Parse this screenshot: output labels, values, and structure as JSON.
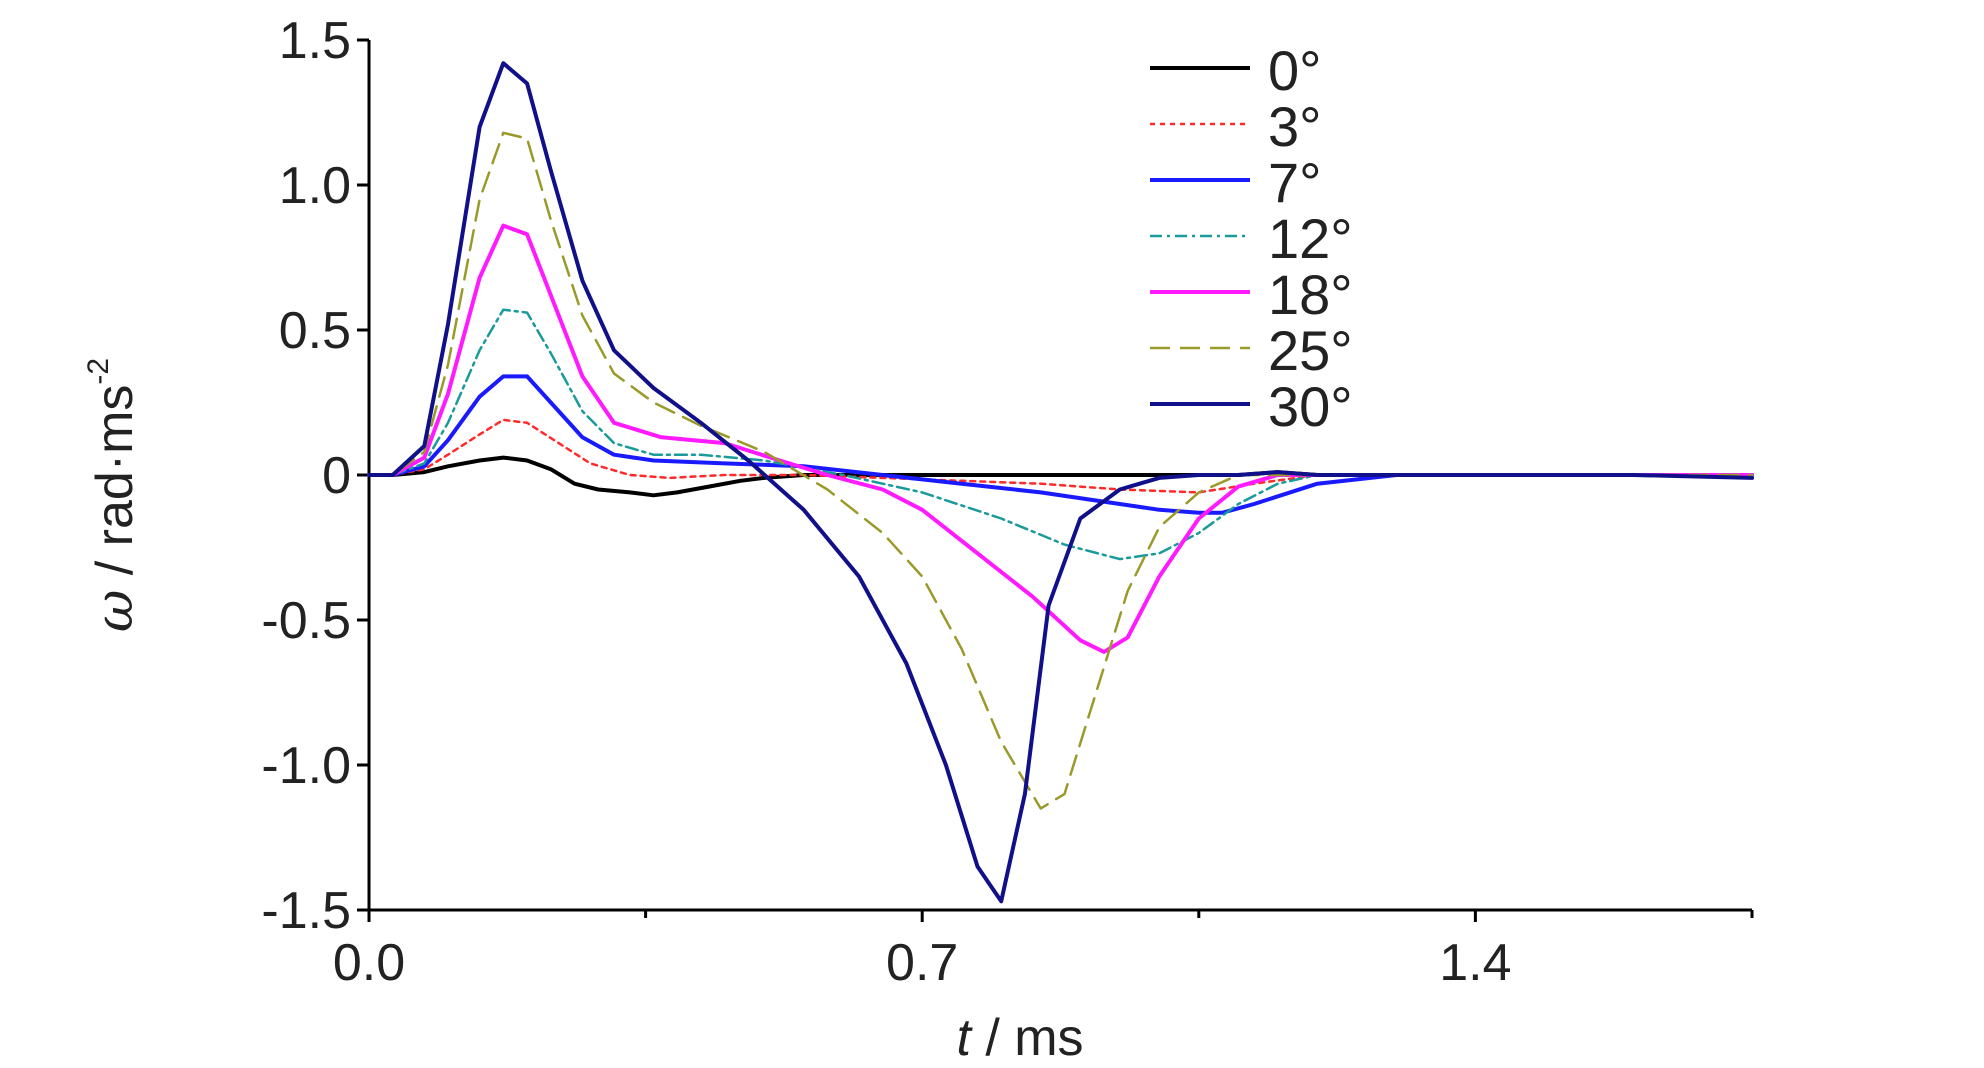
{
  "chart_data": {
    "type": "line",
    "xlabel": {
      "var": "t",
      "rest": " / ms"
    },
    "ylabel": {
      "var": "ω",
      "rest": " / rad·ms",
      "sup": "-2"
    },
    "xlim": [
      0.0,
      1.75
    ],
    "ylim": [
      -1.5,
      1.5
    ],
    "x_ticks": [
      0.0,
      0.7,
      1.4
    ],
    "x_tick_labels": [
      "0.0",
      "0.7",
      "1.4"
    ],
    "x_minor_ticks": [
      0.35,
      1.05,
      1.75
    ],
    "y_ticks": [
      1.5,
      1.0,
      0.5,
      0,
      -0.5,
      -1.0,
      -1.5
    ],
    "y_tick_labels": [
      "1.5",
      "1.0",
      "0.5",
      "0",
      "-0.5",
      "-1.0",
      "-1.5"
    ],
    "grid": false,
    "legend_position": "top-right",
    "series": [
      {
        "name": "0°",
        "color": "#000000",
        "dash": "solid",
        "x": [
          0.0,
          0.03,
          0.07,
          0.1,
          0.14,
          0.17,
          0.2,
          0.23,
          0.26,
          0.29,
          0.33,
          0.36,
          0.39,
          0.43,
          0.47,
          0.5,
          0.55,
          0.6,
          0.7,
          0.8,
          0.9,
          1.0,
          1.1,
          1.15,
          1.2,
          1.3,
          1.4,
          1.5,
          1.6,
          1.75
        ],
        "y": [
          0,
          0,
          0.01,
          0.03,
          0.05,
          0.06,
          0.05,
          0.02,
          -0.03,
          -0.05,
          -0.06,
          -0.07,
          -0.06,
          -0.04,
          -0.02,
          -0.01,
          0,
          0,
          0,
          0,
          0,
          0,
          0,
          0.01,
          0,
          0,
          0,
          0,
          0,
          0
        ]
      },
      {
        "name": "3°",
        "color": "#ff2a2a",
        "dash": "5,5",
        "x": [
          0.0,
          0.03,
          0.07,
          0.1,
          0.14,
          0.17,
          0.2,
          0.24,
          0.28,
          0.33,
          0.38,
          0.45,
          0.55,
          0.65,
          0.75,
          0.85,
          0.95,
          1.05,
          1.12,
          1.2,
          1.3,
          1.4,
          1.5,
          1.75
        ],
        "y": [
          0,
          0,
          0.02,
          0.07,
          0.14,
          0.19,
          0.18,
          0.11,
          0.04,
          0.0,
          -0.01,
          0.0,
          0.0,
          -0.01,
          -0.02,
          -0.03,
          -0.05,
          -0.06,
          -0.03,
          0,
          0,
          0,
          0,
          0
        ]
      },
      {
        "name": "7°",
        "color": "#1a1aff",
        "dash": "solid",
        "x": [
          0.0,
          0.03,
          0.07,
          0.1,
          0.14,
          0.17,
          0.2,
          0.23,
          0.27,
          0.31,
          0.36,
          0.45,
          0.55,
          0.65,
          0.75,
          0.85,
          0.95,
          1.0,
          1.05,
          1.08,
          1.12,
          1.2,
          1.3,
          1.4,
          1.5,
          1.6,
          1.75
        ],
        "y": [
          0,
          0,
          0.03,
          0.12,
          0.27,
          0.34,
          0.34,
          0.25,
          0.13,
          0.07,
          0.05,
          0.04,
          0.03,
          0,
          -0.03,
          -0.06,
          -0.1,
          -0.12,
          -0.13,
          -0.13,
          -0.1,
          -0.03,
          0,
          0,
          0,
          0,
          0
        ]
      },
      {
        "name": "12°",
        "color": "#1a9a9a",
        "dash": "12,5,3,5",
        "x": [
          0.0,
          0.03,
          0.07,
          0.1,
          0.14,
          0.17,
          0.2,
          0.23,
          0.27,
          0.31,
          0.36,
          0.42,
          0.5,
          0.6,
          0.7,
          0.8,
          0.88,
          0.95,
          1.0,
          1.05,
          1.1,
          1.15,
          1.2,
          1.3,
          1.4,
          1.5,
          1.75
        ],
        "y": [
          0,
          0,
          0.04,
          0.18,
          0.43,
          0.57,
          0.56,
          0.42,
          0.22,
          0.11,
          0.07,
          0.07,
          0.05,
          0,
          -0.06,
          -0.15,
          -0.24,
          -0.29,
          -0.27,
          -0.2,
          -0.1,
          -0.03,
          0,
          0,
          0,
          0,
          0
        ]
      },
      {
        "name": "18°",
        "color": "#ff1aff",
        "dash": "solid",
        "x": [
          0.0,
          0.03,
          0.07,
          0.1,
          0.14,
          0.17,
          0.2,
          0.23,
          0.27,
          0.31,
          0.37,
          0.45,
          0.52,
          0.58,
          0.65,
          0.7,
          0.77,
          0.84,
          0.9,
          0.93,
          0.96,
          1.0,
          1.05,
          1.1,
          1.15,
          1.2,
          1.3,
          1.4,
          1.5,
          1.75
        ],
        "y": [
          0,
          0,
          0.06,
          0.28,
          0.68,
          0.86,
          0.83,
          0.62,
          0.34,
          0.18,
          0.13,
          0.11,
          0.05,
          0,
          -0.05,
          -0.12,
          -0.27,
          -0.42,
          -0.57,
          -0.61,
          -0.56,
          -0.35,
          -0.15,
          -0.04,
          0,
          0,
          0,
          0,
          0,
          0
        ]
      },
      {
        "name": "25°",
        "color": "#9a9a2a",
        "dash": "20,10",
        "x": [
          0.0,
          0.03,
          0.07,
          0.1,
          0.14,
          0.17,
          0.2,
          0.23,
          0.27,
          0.31,
          0.36,
          0.42,
          0.5,
          0.58,
          0.65,
          0.7,
          0.75,
          0.8,
          0.85,
          0.88,
          0.92,
          0.96,
          1.0,
          1.05,
          1.1,
          1.15,
          1.2,
          1.3,
          1.4,
          1.5,
          1.75
        ],
        "y": [
          0,
          0,
          0.08,
          0.38,
          0.95,
          1.18,
          1.16,
          0.88,
          0.55,
          0.35,
          0.25,
          0.17,
          0.08,
          -0.05,
          -0.2,
          -0.35,
          -0.6,
          -0.92,
          -1.15,
          -1.1,
          -0.75,
          -0.4,
          -0.18,
          -0.06,
          0,
          0,
          0,
          0,
          0,
          0,
          0
        ]
      },
      {
        "name": "30°",
        "color": "#10108a",
        "dash": "solid",
        "x": [
          0.0,
          0.03,
          0.07,
          0.1,
          0.14,
          0.17,
          0.2,
          0.23,
          0.27,
          0.31,
          0.36,
          0.42,
          0.48,
          0.55,
          0.62,
          0.68,
          0.73,
          0.77,
          0.8,
          0.83,
          0.86,
          0.9,
          0.95,
          1.0,
          1.05,
          1.1,
          1.15,
          1.2,
          1.3,
          1.4,
          1.5,
          1.6,
          1.75
        ],
        "y": [
          0,
          0,
          0.1,
          0.52,
          1.2,
          1.42,
          1.35,
          1.05,
          0.67,
          0.43,
          0.3,
          0.18,
          0.05,
          -0.12,
          -0.35,
          -0.65,
          -1.0,
          -1.35,
          -1.47,
          -1.1,
          -0.45,
          -0.15,
          -0.05,
          -0.01,
          0,
          0,
          0.01,
          0,
          0,
          0,
          0,
          0,
          -0.01
        ]
      }
    ]
  }
}
